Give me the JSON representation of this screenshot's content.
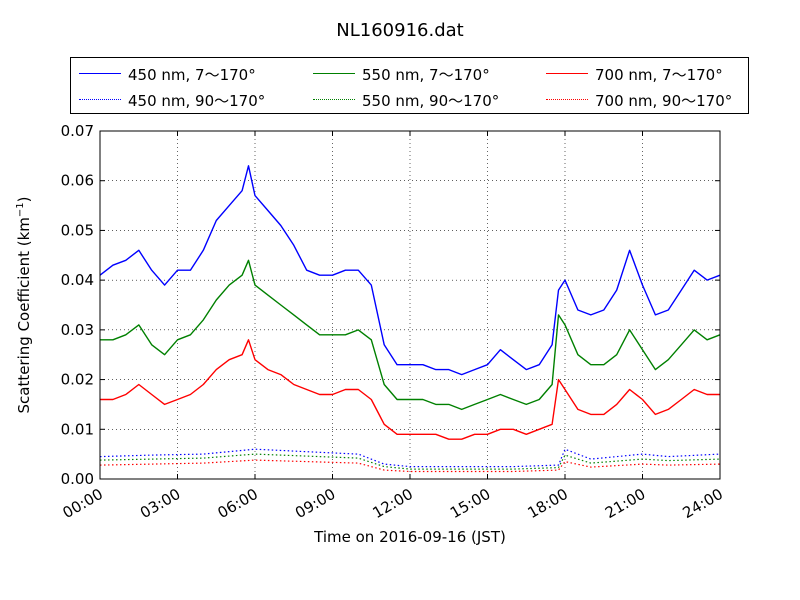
{
  "chart_data": {
    "type": "line",
    "title": "NL160916.dat",
    "xlabel": "Time on 2016-09-16 (JST)",
    "ylabel_main": "Scattering Coefficient (km",
    "ylabel_sup": "−1",
    "ylabel_tail": ")",
    "xlim": [
      "00:00",
      "24:00"
    ],
    "ylim": [
      0.0,
      0.07
    ],
    "xticks": [
      "00:00",
      "03:00",
      "06:00",
      "09:00",
      "12:00",
      "15:00",
      "18:00",
      "21:00",
      "24:00"
    ],
    "yticks": [
      "0.00",
      "0.01",
      "0.02",
      "0.03",
      "0.04",
      "0.05",
      "0.06",
      "0.07"
    ],
    "grid": true,
    "legend_placement": "top, above plot, 3 columns",
    "colors": {
      "450": "#0000ff",
      "550": "#008000",
      "700": "#ff0000"
    },
    "series": [
      {
        "name": "450 nm, 7～170°",
        "color": "#0000ff",
        "style": "solid",
        "x": [
          "00:00",
          "00:30",
          "01:00",
          "01:30",
          "02:00",
          "02:30",
          "03:00",
          "03:30",
          "04:00",
          "04:30",
          "05:00",
          "05:30",
          "05:45",
          "06:00",
          "06:30",
          "07:00",
          "07:30",
          "08:00",
          "08:30",
          "09:00",
          "09:30",
          "10:00",
          "10:30",
          "11:00",
          "11:30",
          "12:00",
          "12:30",
          "13:00",
          "13:30",
          "14:00",
          "14:30",
          "15:00",
          "15:30",
          "16:00",
          "16:30",
          "17:00",
          "17:30",
          "17:45",
          "18:00",
          "18:30",
          "19:00",
          "19:30",
          "20:00",
          "20:30",
          "21:00",
          "21:30",
          "22:00",
          "22:30",
          "23:00",
          "23:30",
          "24:00"
        ],
        "y": [
          0.041,
          0.043,
          0.044,
          0.046,
          0.042,
          0.039,
          0.042,
          0.042,
          0.046,
          0.052,
          0.055,
          0.058,
          0.063,
          0.057,
          0.054,
          0.051,
          0.047,
          0.042,
          0.041,
          0.041,
          0.042,
          0.042,
          0.039,
          0.027,
          0.023,
          0.023,
          0.023,
          0.022,
          0.022,
          0.021,
          0.022,
          0.023,
          0.026,
          0.024,
          0.022,
          0.023,
          0.027,
          0.038,
          0.04,
          0.034,
          0.033,
          0.034,
          0.038,
          0.046,
          0.039,
          0.033,
          0.034,
          0.038,
          0.042,
          0.04,
          0.041
        ]
      },
      {
        "name": "550 nm, 7～170°",
        "color": "#008000",
        "style": "solid",
        "x": [
          "00:00",
          "00:30",
          "01:00",
          "01:30",
          "02:00",
          "02:30",
          "03:00",
          "03:30",
          "04:00",
          "04:30",
          "05:00",
          "05:30",
          "05:45",
          "06:00",
          "06:30",
          "07:00",
          "07:30",
          "08:00",
          "08:30",
          "09:00",
          "09:30",
          "10:00",
          "10:30",
          "11:00",
          "11:30",
          "12:00",
          "12:30",
          "13:00",
          "13:30",
          "14:00",
          "14:30",
          "15:00",
          "15:30",
          "16:00",
          "16:30",
          "17:00",
          "17:30",
          "17:45",
          "18:00",
          "18:30",
          "19:00",
          "19:30",
          "20:00",
          "20:30",
          "21:00",
          "21:30",
          "22:00",
          "22:30",
          "23:00",
          "23:30",
          "24:00"
        ],
        "y": [
          0.028,
          0.028,
          0.029,
          0.031,
          0.027,
          0.025,
          0.028,
          0.029,
          0.032,
          0.036,
          0.039,
          0.041,
          0.044,
          0.039,
          0.037,
          0.035,
          0.033,
          0.031,
          0.029,
          0.029,
          0.029,
          0.03,
          0.028,
          0.019,
          0.016,
          0.016,
          0.016,
          0.015,
          0.015,
          0.014,
          0.015,
          0.016,
          0.017,
          0.016,
          0.015,
          0.016,
          0.019,
          0.033,
          0.031,
          0.025,
          0.023,
          0.023,
          0.025,
          0.03,
          0.026,
          0.022,
          0.024,
          0.027,
          0.03,
          0.028,
          0.029
        ]
      },
      {
        "name": "700 nm, 7～170°",
        "color": "#ff0000",
        "style": "solid",
        "x": [
          "00:00",
          "00:30",
          "01:00",
          "01:30",
          "02:00",
          "02:30",
          "03:00",
          "03:30",
          "04:00",
          "04:30",
          "05:00",
          "05:30",
          "05:45",
          "06:00",
          "06:30",
          "07:00",
          "07:30",
          "08:00",
          "08:30",
          "09:00",
          "09:30",
          "10:00",
          "10:30",
          "11:00",
          "11:30",
          "12:00",
          "12:30",
          "13:00",
          "13:30",
          "14:00",
          "14:30",
          "15:00",
          "15:30",
          "16:00",
          "16:30",
          "17:00",
          "17:30",
          "17:45",
          "18:00",
          "18:30",
          "19:00",
          "19:30",
          "20:00",
          "20:30",
          "21:00",
          "21:30",
          "22:00",
          "22:30",
          "23:00",
          "23:30",
          "24:00"
        ],
        "y": [
          0.016,
          0.016,
          0.017,
          0.019,
          0.017,
          0.015,
          0.016,
          0.017,
          0.019,
          0.022,
          0.024,
          0.025,
          0.028,
          0.024,
          0.022,
          0.021,
          0.019,
          0.018,
          0.017,
          0.017,
          0.018,
          0.018,
          0.016,
          0.011,
          0.009,
          0.009,
          0.009,
          0.009,
          0.008,
          0.008,
          0.009,
          0.009,
          0.01,
          0.01,
          0.009,
          0.01,
          0.011,
          0.02,
          0.018,
          0.014,
          0.013,
          0.013,
          0.015,
          0.018,
          0.016,
          0.013,
          0.014,
          0.016,
          0.018,
          0.017,
          0.017
        ]
      },
      {
        "name": "450 nm, 90～170°",
        "color": "#0000ff",
        "style": "dotted",
        "x": [
          "00:00",
          "02:00",
          "04:00",
          "06:00",
          "08:00",
          "10:00",
          "11:00",
          "12:00",
          "14:00",
          "16:00",
          "17:45",
          "18:00",
          "19:00",
          "21:00",
          "22:00",
          "24:00"
        ],
        "y": [
          0.0045,
          0.0048,
          0.005,
          0.006,
          0.0055,
          0.005,
          0.003,
          0.0025,
          0.0025,
          0.0025,
          0.0028,
          0.006,
          0.004,
          0.005,
          0.0045,
          0.005
        ]
      },
      {
        "name": "550 nm, 90～170°",
        "color": "#008000",
        "style": "dotted",
        "x": [
          "00:00",
          "02:00",
          "04:00",
          "06:00",
          "08:00",
          "10:00",
          "11:00",
          "12:00",
          "14:00",
          "16:00",
          "17:45",
          "18:00",
          "19:00",
          "21:00",
          "22:00",
          "24:00"
        ],
        "y": [
          0.0038,
          0.004,
          0.0042,
          0.005,
          0.0046,
          0.0042,
          0.0025,
          0.002,
          0.002,
          0.002,
          0.0023,
          0.0048,
          0.0032,
          0.004,
          0.0037,
          0.004
        ]
      },
      {
        "name": "700 nm, 90～170°",
        "color": "#ff0000",
        "style": "dotted",
        "x": [
          "00:00",
          "02:00",
          "04:00",
          "06:00",
          "08:00",
          "10:00",
          "11:00",
          "12:00",
          "14:00",
          "16:00",
          "17:45",
          "18:00",
          "19:00",
          "21:00",
          "22:00",
          "24:00"
        ],
        "y": [
          0.0028,
          0.003,
          0.0032,
          0.0038,
          0.0035,
          0.0032,
          0.0018,
          0.0015,
          0.0015,
          0.0015,
          0.0018,
          0.0035,
          0.0024,
          0.003,
          0.0028,
          0.003
        ]
      }
    ]
  }
}
